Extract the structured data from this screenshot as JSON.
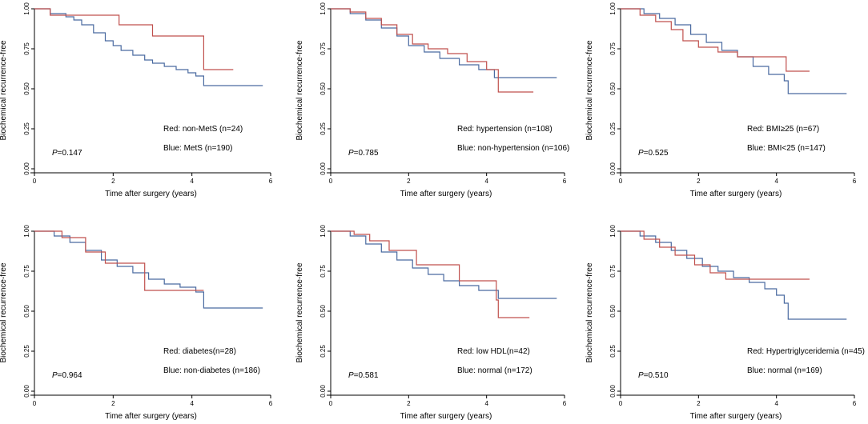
{
  "colors": {
    "red": "#c0504d",
    "blue": "#4a6aa0",
    "axis": "#000000"
  },
  "chart_data": [
    {
      "type": "line",
      "title": "",
      "xlabel": "Time after surgery (years)",
      "ylabel": "Biochemical recurrence-free",
      "xlim": [
        0,
        6
      ],
      "ylim": [
        0,
        1
      ],
      "xticks": [
        "0",
        "2",
        "4",
        "6"
      ],
      "yticks": [
        "0.00",
        "0.25",
        "0.50",
        "0.75",
        "1.00"
      ],
      "legend": [
        "Red: non-MetS (n=24)",
        "Blue: MetS (n=190)"
      ],
      "p_prefix": "P",
      "p_value": "=0.147",
      "series": [
        {
          "name": "non-MetS",
          "color": "red",
          "x": [
            0,
            0.4,
            2.15,
            3.0,
            4.3,
            5.05
          ],
          "y": [
            1.0,
            0.96,
            0.9,
            0.83,
            0.62,
            0.62
          ]
        },
        {
          "name": "MetS",
          "color": "blue",
          "x": [
            0,
            0.4,
            0.8,
            1.0,
            1.2,
            1.5,
            1.8,
            2.0,
            2.2,
            2.5,
            2.8,
            3.0,
            3.3,
            3.6,
            3.9,
            4.1,
            4.3,
            5.8
          ],
          "y": [
            1.0,
            0.97,
            0.95,
            0.93,
            0.9,
            0.85,
            0.8,
            0.77,
            0.74,
            0.71,
            0.68,
            0.66,
            0.64,
            0.62,
            0.6,
            0.58,
            0.52,
            0.52
          ]
        }
      ]
    },
    {
      "type": "line",
      "title": "",
      "xlabel": "Time after surgery (years)",
      "ylabel": "Biochemical recurrence-free",
      "xlim": [
        0,
        6
      ],
      "ylim": [
        0,
        1
      ],
      "xticks": [
        "0",
        "2",
        "4",
        "6"
      ],
      "yticks": [
        "0.00",
        "0.25",
        "0.50",
        "0.75",
        "1.00"
      ],
      "legend": [
        "Red: hypertension (n=108)",
        "Blue: non-hypertension (n=106)"
      ],
      "p_prefix": "P",
      "p_value": "=0.785",
      "series": [
        {
          "name": "hypertension",
          "color": "red",
          "x": [
            0,
            0.5,
            0.9,
            1.3,
            1.7,
            2.1,
            2.5,
            3.0,
            3.5,
            4.0,
            4.3,
            5.2
          ],
          "y": [
            1.0,
            0.98,
            0.94,
            0.9,
            0.84,
            0.78,
            0.75,
            0.72,
            0.67,
            0.62,
            0.48,
            0.48
          ]
        },
        {
          "name": "non-hypertension",
          "color": "blue",
          "x": [
            0,
            0.5,
            0.9,
            1.3,
            1.7,
            2.0,
            2.4,
            2.8,
            3.3,
            3.8,
            4.2,
            5.8
          ],
          "y": [
            1.0,
            0.97,
            0.93,
            0.88,
            0.83,
            0.77,
            0.73,
            0.69,
            0.65,
            0.62,
            0.57,
            0.57
          ]
        }
      ]
    },
    {
      "type": "line",
      "title": "",
      "xlabel": "Time after surgery (years)",
      "ylabel": "Biochemical recurrence-free",
      "xlim": [
        0,
        6
      ],
      "ylim": [
        0,
        1
      ],
      "xticks": [
        "0",
        "2",
        "4",
        "6"
      ],
      "yticks": [
        "0.00",
        "0.25",
        "0.50",
        "0.75",
        "1.00"
      ],
      "legend": [
        "Red: BMI≥25 (n=67)",
        "Blue: BMI<25 (n=147)"
      ],
      "p_prefix": "P",
      "p_value": "=0.525",
      "series": [
        {
          "name": "BMI≥25",
          "color": "red",
          "x": [
            0,
            0.5,
            0.9,
            1.3,
            1.6,
            2.0,
            2.5,
            3.0,
            4.25,
            4.85
          ],
          "y": [
            1.0,
            0.96,
            0.92,
            0.87,
            0.8,
            0.76,
            0.73,
            0.7,
            0.61,
            0.61
          ]
        },
        {
          "name": "BMI<25",
          "color": "blue",
          "x": [
            0,
            0.6,
            1.0,
            1.4,
            1.8,
            2.2,
            2.6,
            3.0,
            3.4,
            3.8,
            4.2,
            4.3,
            5.8
          ],
          "y": [
            1.0,
            0.97,
            0.94,
            0.9,
            0.84,
            0.79,
            0.74,
            0.7,
            0.64,
            0.59,
            0.55,
            0.47,
            0.47
          ]
        }
      ]
    },
    {
      "type": "line",
      "title": "",
      "xlabel": "Time after surgery (years)",
      "ylabel": "Biochemical recurrence-free",
      "xlim": [
        0,
        6
      ],
      "ylim": [
        0,
        1
      ],
      "xticks": [
        "0",
        "2",
        "4",
        "6"
      ],
      "yticks": [
        "0.00",
        "0.25",
        "0.50",
        "0.75",
        "1.00"
      ],
      "legend": [
        "Red: diabetes(n=28)",
        "Blue: non-diabetes (n=186)"
      ],
      "p_prefix": "P",
      "p_value": "=0.964",
      "series": [
        {
          "name": "diabetes",
          "color": "red",
          "x": [
            0,
            0.7,
            1.3,
            1.8,
            2.8,
            4.3
          ],
          "y": [
            1.0,
            0.96,
            0.87,
            0.8,
            0.63,
            0.63
          ]
        },
        {
          "name": "non-diabetes",
          "color": "blue",
          "x": [
            0,
            0.5,
            0.9,
            1.3,
            1.7,
            2.1,
            2.5,
            2.9,
            3.3,
            3.7,
            4.1,
            4.3,
            5.8
          ],
          "y": [
            1.0,
            0.97,
            0.93,
            0.88,
            0.82,
            0.78,
            0.74,
            0.7,
            0.67,
            0.65,
            0.62,
            0.52,
            0.52
          ]
        }
      ]
    },
    {
      "type": "line",
      "title": "",
      "xlabel": "Time after surgery (years)",
      "ylabel": "Biochemical recurrence-free",
      "xlim": [
        0,
        6
      ],
      "ylim": [
        0,
        1
      ],
      "xticks": [
        "0",
        "2",
        "4",
        "6"
      ],
      "yticks": [
        "0.00",
        "0.25",
        "0.50",
        "0.75",
        "1.00"
      ],
      "legend": [
        "Red: low HDL(n=42)",
        "Blue: normal  (n=172)"
      ],
      "p_prefix": "P",
      "p_value": "=0.581",
      "series": [
        {
          "name": "low HDL",
          "color": "red",
          "x": [
            0,
            0.6,
            1.0,
            1.5,
            2.2,
            3.3,
            4.25,
            4.3,
            5.1
          ],
          "y": [
            1.0,
            0.98,
            0.94,
            0.88,
            0.79,
            0.69,
            0.57,
            0.46,
            0.46
          ]
        },
        {
          "name": "normal",
          "color": "blue",
          "x": [
            0,
            0.5,
            0.9,
            1.3,
            1.7,
            2.1,
            2.5,
            2.9,
            3.3,
            3.8,
            4.3,
            5.8
          ],
          "y": [
            1.0,
            0.97,
            0.92,
            0.87,
            0.82,
            0.77,
            0.73,
            0.69,
            0.66,
            0.63,
            0.58,
            0.58
          ]
        }
      ]
    },
    {
      "type": "line",
      "title": "",
      "xlabel": "Time after surgery (years)",
      "ylabel": "Biochemical recurrence-free",
      "xlim": [
        0,
        6
      ],
      "ylim": [
        0,
        1
      ],
      "xticks": [
        "0",
        "2",
        "4",
        "6"
      ],
      "yticks": [
        "0.00",
        "0.25",
        "0.50",
        "0.75",
        "1.00"
      ],
      "legend": [
        "Red: Hypertriglyceridemia (n=45)",
        "Blue: normal  (n=169)"
      ],
      "p_prefix": "P",
      "p_value": "=0.510",
      "series": [
        {
          "name": "Hypertriglyceridemia",
          "color": "red",
          "x": [
            0,
            0.6,
            1.0,
            1.4,
            1.9,
            2.3,
            2.7,
            4.85
          ],
          "y": [
            1.0,
            0.95,
            0.9,
            0.85,
            0.79,
            0.74,
            0.7,
            0.7
          ]
        },
        {
          "name": "normal",
          "color": "blue",
          "x": [
            0,
            0.5,
            0.9,
            1.3,
            1.7,
            2.1,
            2.5,
            2.9,
            3.3,
            3.7,
            4.0,
            4.2,
            4.3,
            5.8
          ],
          "y": [
            1.0,
            0.97,
            0.93,
            0.88,
            0.83,
            0.78,
            0.75,
            0.71,
            0.68,
            0.64,
            0.6,
            0.55,
            0.45,
            0.45
          ]
        }
      ]
    }
  ]
}
